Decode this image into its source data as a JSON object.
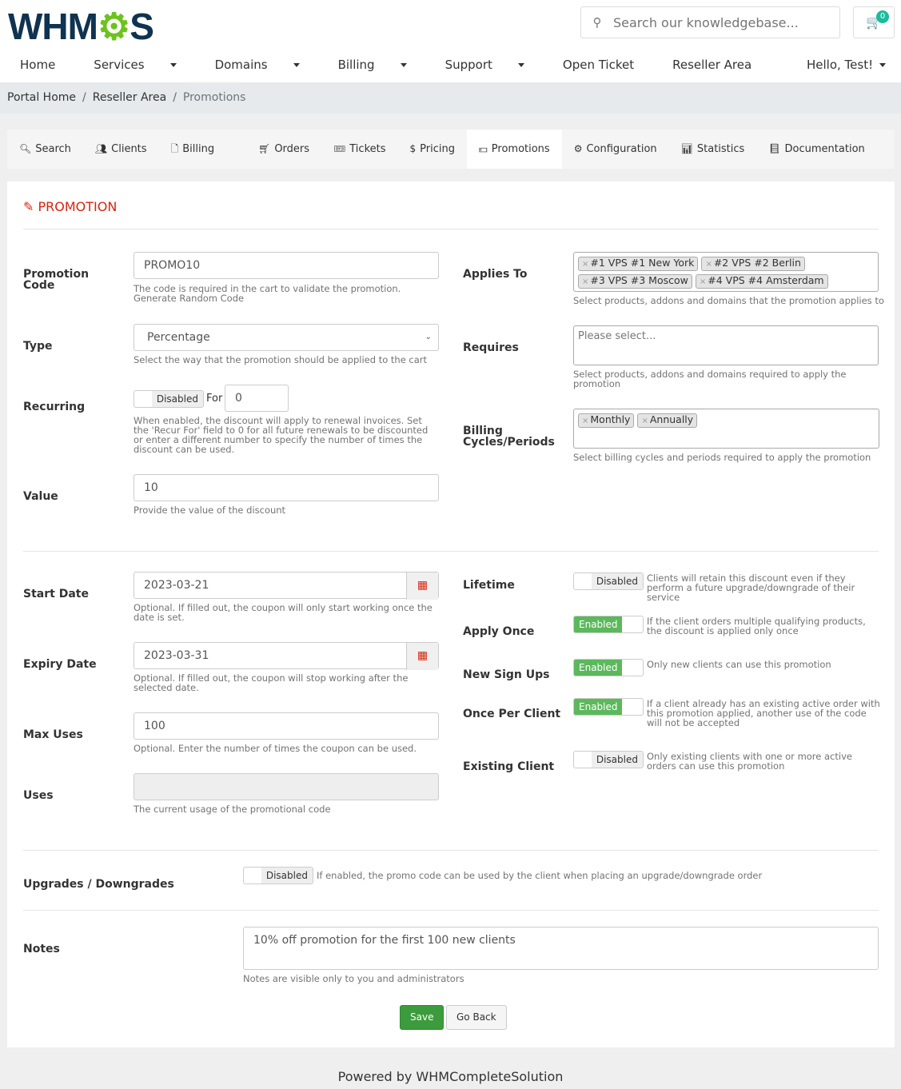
{
  "header": {
    "logo": "WHMCS",
    "search_placeholder": "Search our knowledgebase...",
    "cart_count": "0",
    "nav": [
      {
        "label": "Home",
        "dropdown": false
      },
      {
        "label": "Services",
        "dropdown": true
      },
      {
        "label": "Domains",
        "dropdown": true
      },
      {
        "label": "Billing",
        "dropdown": true
      },
      {
        "label": "Support",
        "dropdown": true
      },
      {
        "label": "Open Ticket",
        "dropdown": false
      },
      {
        "label": "Reseller Area",
        "dropdown": false
      }
    ],
    "user": "Hello, Test!"
  },
  "breadcrumb": [
    "Portal Home",
    "Reseller Area",
    "Promotions"
  ],
  "tabs": [
    {
      "label": "Search",
      "icon": "search-icon"
    },
    {
      "label": "Clients",
      "icon": "users-icon"
    },
    {
      "label": "Billing",
      "icon": "file-icon"
    },
    {
      "label": "Orders",
      "icon": "cart-icon"
    },
    {
      "label": "Tickets",
      "icon": "ticket-icon"
    },
    {
      "label": "Pricing",
      "icon": "dollar-icon"
    },
    {
      "label": "Promotions",
      "icon": "money-icon",
      "active": true
    },
    {
      "label": "Configuration",
      "icon": "cogs-icon"
    },
    {
      "label": "Statistics",
      "icon": "bar-chart-icon"
    },
    {
      "label": "Documentation",
      "icon": "book-icon"
    }
  ],
  "form": {
    "title": "PROMOTION",
    "promo_code": {
      "label": "Promotion Code",
      "value": "PROMO10",
      "help": "The code is required in the cart to validate the promotion. Generate Random Code"
    },
    "type": {
      "label": "Type",
      "value": "Percentage",
      "help": "Select the way that the promotion should be applied to the cart"
    },
    "recurring": {
      "label": "Recurring",
      "state": "Disabled",
      "for_label": "For",
      "for_value": "0",
      "help": "When enabled, the discount will apply to renewal invoices. Set the 'Recur For' field to 0 for all future renewals to be discounted or enter a different number to specify the number of times the discount can be used."
    },
    "value": {
      "label": "Value",
      "value": "10",
      "help": "Provide the value of the discount"
    },
    "applies_to": {
      "label": "Applies To",
      "tags": [
        "#1 VPS #1 New York",
        "#2 VPS #2 Berlin",
        "#3 VPS #3 Moscow",
        "#4 VPS #4 Amsterdam"
      ],
      "help": "Select products, addons and domains that the promotion applies to"
    },
    "requires": {
      "label": "Requires",
      "placeholder": "Please select...",
      "help": "Select products, addons and domains required to apply the promotion"
    },
    "billing_cycles": {
      "label": "Billing Cycles/Periods",
      "tags": [
        "Monthly",
        "Annually"
      ],
      "help": "Select billing cycles and periods required to apply the promotion"
    },
    "start_date": {
      "label": "Start Date",
      "value": "2023-03-21",
      "help": "Optional. If filled out, the coupon will only start working once the date is set."
    },
    "expiry_date": {
      "label": "Expiry Date",
      "value": "2023-03-31",
      "help": "Optional. If filled out, the coupon will stop working after the selected date."
    },
    "max_uses": {
      "label": "Max Uses",
      "value": "100",
      "help": "Optional. Enter the number of times the coupon can be used."
    },
    "uses": {
      "label": "Uses",
      "value": "",
      "help": "The current usage of the promotional code"
    },
    "lifetime": {
      "label": "Lifetime",
      "state": "Disabled",
      "help": "Clients will retain this discount even if they perform a future upgrade/downgrade of their service"
    },
    "apply_once": {
      "label": "Apply Once",
      "state": "Enabled",
      "help": "If the client orders multiple qualifying products, the discount is applied only once"
    },
    "new_signups": {
      "label": "New Sign Ups",
      "state": "Enabled",
      "help": "Only new clients can use this promotion"
    },
    "once_per_client": {
      "label": "Once Per Client",
      "state": "Enabled",
      "help": "If a client already has an existing active order with this promotion applied, another use of the code will not be accepted"
    },
    "existing_client": {
      "label": "Existing Client",
      "state": "Disabled",
      "help": "Only existing clients with one or more active orders can use this promotion"
    },
    "upgrades": {
      "label": "Upgrades / Downgrades",
      "state": "Disabled",
      "help": "If enabled, the promo code can be used by the client when placing an upgrade/downgrade order"
    },
    "notes": {
      "label": "Notes",
      "value": "10% off promotion for the first 100 new clients",
      "help": "Notes are visible only to you and administrators"
    },
    "save": "Save",
    "back": "Go Back"
  },
  "footer": "Powered by WHMCompleteSolution",
  "colors": {
    "accent": "#d9230f",
    "enabled": "#5cb85c",
    "logo_dark": "#0f3350",
    "logo_green": "#6cc31f"
  }
}
